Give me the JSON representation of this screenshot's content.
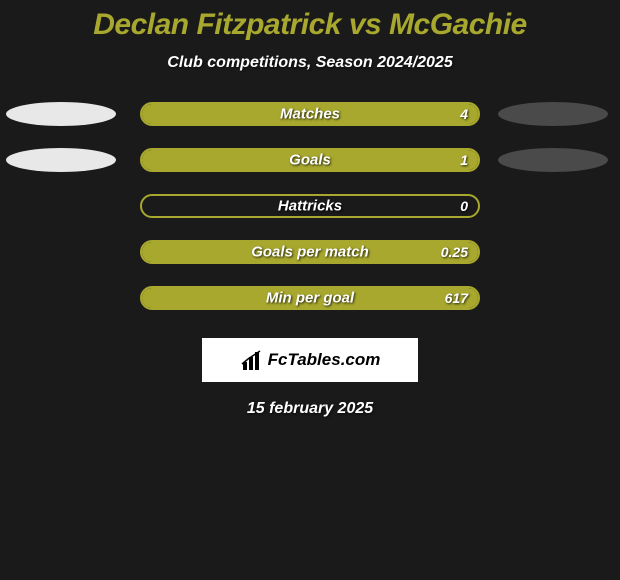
{
  "title": {
    "text": "Declan Fitzpatrick vs McGachie",
    "color": "#a8a82e",
    "fontsize": 30
  },
  "subtitle": {
    "text": "Club competitions, Season 2024/2025",
    "fontsize": 16
  },
  "bars": {
    "container_width": 340,
    "container_height": 24,
    "border_color": "#a8a82e",
    "border_width": 2,
    "fill_color": "#a8a82e",
    "label_fontsize": 15,
    "value_fontsize": 14,
    "items": [
      {
        "label": "Matches",
        "value": "4",
        "fill_pct": 100,
        "ellipses": true
      },
      {
        "label": "Goals",
        "value": "1",
        "fill_pct": 100,
        "ellipses": true
      },
      {
        "label": "Hattricks",
        "value": "0",
        "fill_pct": 0,
        "ellipses": false
      },
      {
        "label": "Goals per match",
        "value": "0.25",
        "fill_pct": 100,
        "ellipses": false
      },
      {
        "label": "Min per goal",
        "value": "617",
        "fill_pct": 100,
        "ellipses": false
      }
    ]
  },
  "ellipses": {
    "left_color": "#e8e8e8",
    "right_color": "#4a4a4a",
    "width": 110,
    "height": 24
  },
  "logo": {
    "text": "FcTables.com",
    "fontsize": 17,
    "box_bg": "#ffffff",
    "icon_color": "#000000"
  },
  "date": {
    "text": "15 february 2025",
    "fontsize": 16
  },
  "background_color": "#1a1a1a"
}
